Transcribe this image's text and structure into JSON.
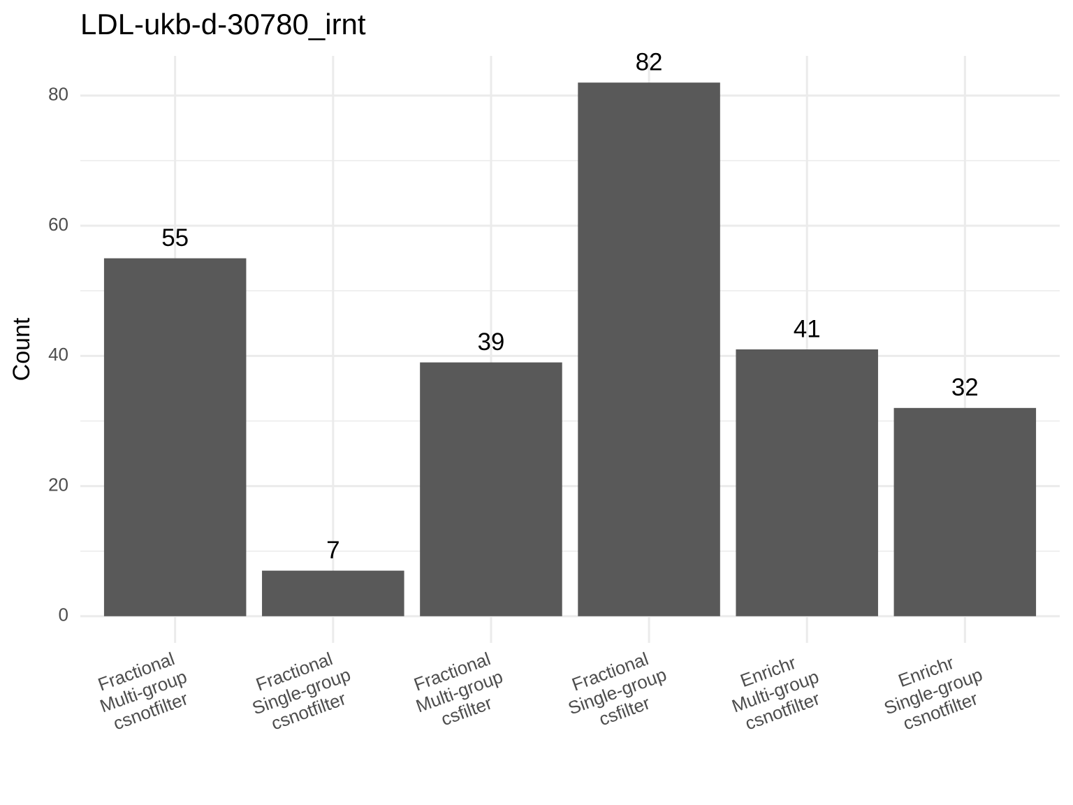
{
  "chart_data": {
    "type": "bar",
    "title": "LDL-ukb-d-30780_irnt",
    "y_label": "Count",
    "categories": [
      [
        "Fractional",
        "Multi-group",
        "csnotfilter"
      ],
      [
        "Fractional",
        "Single-group",
        "csnotfilter"
      ],
      [
        "Fractional",
        "Multi-group",
        "csfilter"
      ],
      [
        "Fractional",
        "Single-group",
        "csfilter"
      ],
      [
        "Enrichr",
        "Multi-group",
        "csnotfilter"
      ],
      [
        "Enrichr",
        "Single-group",
        "csnotfilter"
      ]
    ],
    "values": [
      55,
      7,
      39,
      82,
      41,
      32
    ],
    "color": "#595959",
    "ylim": [
      -4.1,
      86.1
    ],
    "yticks": [
      0,
      20,
      40,
      60,
      80
    ],
    "minor_yticks": [
      10,
      30,
      50,
      70
    ],
    "grid": true
  }
}
